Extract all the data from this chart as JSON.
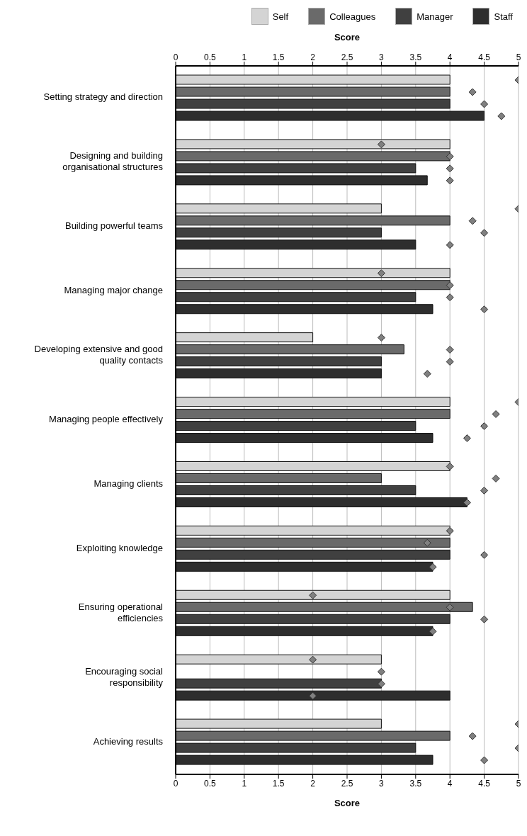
{
  "chart_data": {
    "type": "bar",
    "orientation": "horizontal",
    "xlabel": "Score",
    "x2label": "Score",
    "categories": [
      "Setting strategy and direction",
      "Designing and building organisational structures",
      "Building powerful teams",
      "Managing major change",
      "Developing extensive and good quality contacts",
      "Managing people effectively",
      "Managing clients",
      "Exploiting knowledge",
      "Ensuring operational efficiencies",
      "Encouraging social responsibility",
      "Achieving results"
    ],
    "series": [
      {
        "name": "Self",
        "color": "#d4d4d4",
        "values": [
          4,
          4,
          3,
          4,
          2,
          4,
          4,
          4,
          4,
          3,
          3
        ]
      },
      {
        "name": "Colleagues",
        "color": "#6a6a6a",
        "values": [
          4,
          4,
          4,
          4,
          3.33,
          4,
          3,
          4,
          4.33,
          null,
          4
        ]
      },
      {
        "name": "Manager",
        "color": "#404040",
        "values": [
          4,
          3.5,
          3,
          3.5,
          3,
          3.5,
          3.5,
          4,
          4,
          3,
          3.5
        ]
      },
      {
        "name": "Staff",
        "color": "#2e2e2e",
        "values": [
          4.5,
          3.67,
          3.5,
          3.75,
          3,
          3.75,
          4.25,
          3.75,
          3.75,
          4,
          3.75
        ]
      },
      {
        "type": "scatter",
        "color": "#808080",
        "values": [
          5,
          3,
          5,
          3,
          3,
          5,
          4,
          4,
          2,
          2,
          5
        ]
      },
      {
        "type": "scatter",
        "color": "#808080",
        "values": [
          4.33,
          4,
          4.33,
          4,
          4,
          4.67,
          4.67,
          3.67,
          4,
          3,
          4.33
        ]
      },
      {
        "type": "scatter",
        "color": "#808080",
        "values": [
          4.5,
          4,
          4.5,
          4,
          4,
          4.5,
          4.5,
          4.5,
          4.5,
          3,
          5
        ]
      },
      {
        "type": "scatter",
        "color": "#808080",
        "values": [
          4.75,
          4,
          4,
          4.5,
          3.67,
          4.25,
          4.25,
          3.75,
          3.75,
          2,
          4.5
        ]
      }
    ],
    "marker": "diamond",
    "xlim": [
      0,
      5
    ],
    "xticks": [
      0,
      0.5,
      1,
      1.5,
      2,
      2.5,
      3,
      3.5,
      4,
      4.5,
      5
    ],
    "x2lim": [
      0,
      5
    ],
    "x2ticks": [
      0,
      0.5,
      1,
      1.5,
      2,
      2.5,
      3,
      3.5,
      4,
      4.5,
      5
    ],
    "grid": "x",
    "legend": "top"
  }
}
